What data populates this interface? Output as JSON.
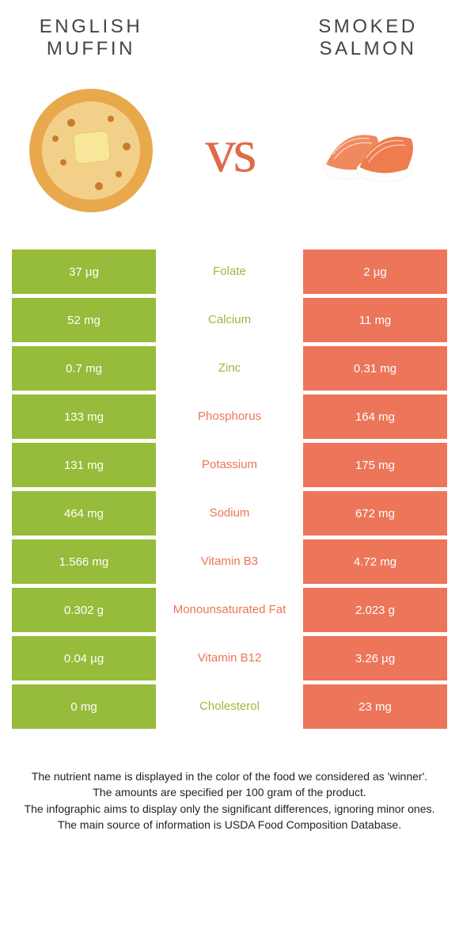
{
  "left_food": "English Muffin",
  "right_food": "Smoked Salmon",
  "vs_label": "vs",
  "colors": {
    "left_bg": "#97bb3a",
    "right_bg": "#ec755a",
    "left_text": "#97bb3a",
    "right_text": "#ec755a"
  },
  "rows": [
    {
      "nutrient": "Folate",
      "left": "37 µg",
      "right": "2 µg",
      "winner": "left"
    },
    {
      "nutrient": "Calcium",
      "left": "52 mg",
      "right": "11 mg",
      "winner": "left"
    },
    {
      "nutrient": "Zinc",
      "left": "0.7 mg",
      "right": "0.31 mg",
      "winner": "left"
    },
    {
      "nutrient": "Phosphorus",
      "left": "133 mg",
      "right": "164 mg",
      "winner": "right"
    },
    {
      "nutrient": "Potassium",
      "left": "131 mg",
      "right": "175 mg",
      "winner": "right"
    },
    {
      "nutrient": "Sodium",
      "left": "464 mg",
      "right": "672 mg",
      "winner": "right"
    },
    {
      "nutrient": "Vitamin B3",
      "left": "1.566 mg",
      "right": "4.72 mg",
      "winner": "right"
    },
    {
      "nutrient": "Monounsaturated Fat",
      "left": "0.302 g",
      "right": "2.023 g",
      "winner": "right"
    },
    {
      "nutrient": "Vitamin B12",
      "left": "0.04 µg",
      "right": "3.26 µg",
      "winner": "right"
    },
    {
      "nutrient": "Cholesterol",
      "left": "0 mg",
      "right": "23 mg",
      "winner": "left"
    }
  ],
  "footer": [
    "The nutrient name is displayed in the color of the food we considered as 'winner'.",
    "The amounts are specified per 100 gram of the product.",
    "The infographic aims to display only the significant differences, ignoring minor ones.",
    "The main source of information is USDA Food Composition Database."
  ]
}
